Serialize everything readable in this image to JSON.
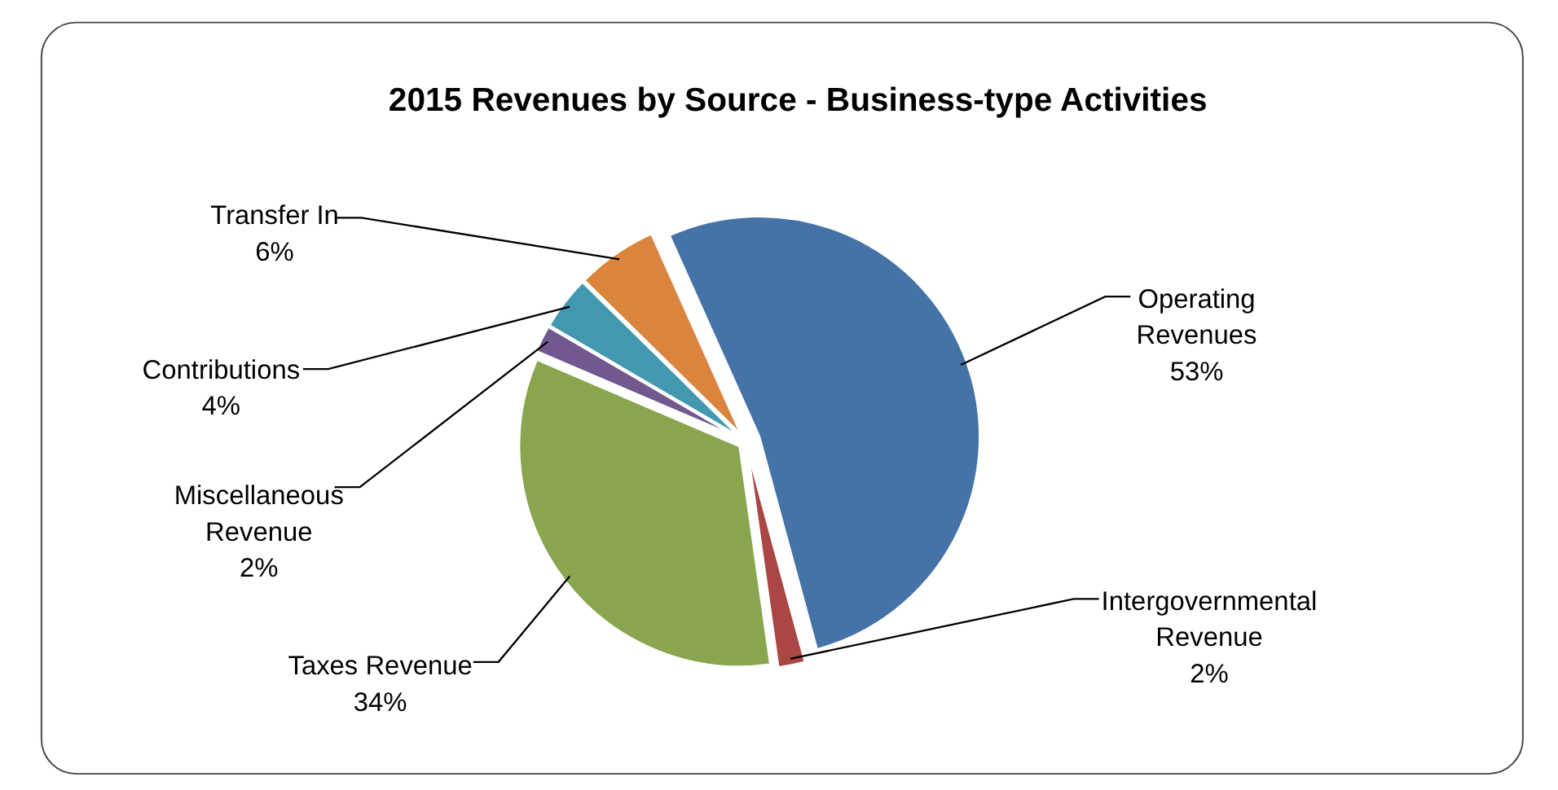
{
  "chart_data": {
    "type": "pie",
    "title": "2015 Revenues by Source - Business-type Activities",
    "categories": [
      "Operating Revenues",
      "Intergovernmental Revenue",
      "Taxes Revenue",
      "Miscellaneous Revenue",
      "Contributions",
      "Transfer In"
    ],
    "values": [
      53,
      2,
      34,
      2,
      4,
      6
    ],
    "colors": [
      "#4572a7",
      "#aa4643",
      "#89a54e",
      "#71588f",
      "#4198af",
      "#db843d"
    ],
    "value_labels": [
      "53%",
      "2%",
      "34%",
      "2%",
      "4%",
      "6%"
    ]
  }
}
